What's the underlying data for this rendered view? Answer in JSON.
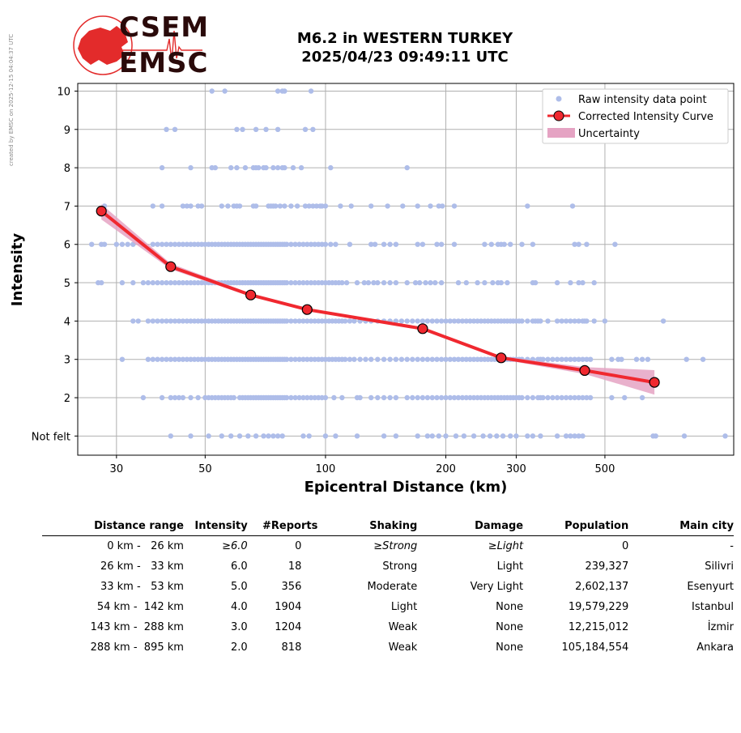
{
  "watermark": "created by EMSC on 2025-12-15 04:04:37 UTC",
  "logo": {
    "line1": "CSEM",
    "line2": "EMSC",
    "color": "#e32b2b"
  },
  "header": {
    "title": "M6.2 in WESTERN TURKEY",
    "subtitle": "2025/04/23 09:49:11 UTC"
  },
  "chart_data": {
    "type": "scatter",
    "xlabel": "Epicentral Distance (km)",
    "ylabel": "Intensity",
    "x_scale": "log",
    "xlim": [
      24,
      1050
    ],
    "ylim": [
      0.5,
      10.2
    ],
    "grid": true,
    "legend_position": "top-right",
    "x_ticks": [
      30,
      50,
      100,
      200,
      300,
      500
    ],
    "y_ticks": [
      {
        "value": 1,
        "label": "Not felt"
      },
      {
        "value": 2,
        "label": "2"
      },
      {
        "value": 3,
        "label": "3"
      },
      {
        "value": 4,
        "label": "4"
      },
      {
        "value": 5,
        "label": "5"
      },
      {
        "value": 6,
        "label": "6"
      },
      {
        "value": 7,
        "label": "7"
      },
      {
        "value": 8,
        "label": "8"
      },
      {
        "value": 9,
        "label": "9"
      },
      {
        "value": 10,
        "label": "10"
      }
    ],
    "colors": {
      "raw": "#aebde9",
      "curve": "#f0282f",
      "uncertainty": "#e5a3c3",
      "grid": "#b0b0b0"
    },
    "legend": [
      {
        "name": "Raw intensity data point",
        "kind": "dot"
      },
      {
        "name": "Corrected Intensity Curve",
        "kind": "line"
      },
      {
        "name": "Uncertainty",
        "kind": "band"
      }
    ],
    "raw_data": [
      {
        "y": 10,
        "x": [
          52,
          56,
          76,
          78,
          79,
          92
        ]
      },
      {
        "y": 9,
        "x": [
          40,
          42,
          60,
          62,
          67,
          71,
          76,
          89,
          93
        ]
      },
      {
        "y": 8,
        "x": [
          39,
          46,
          52,
          53,
          58,
          60,
          63,
          66,
          67,
          68,
          70,
          71,
          74,
          76,
          78,
          79,
          83,
          87,
          103,
          160
        ]
      },
      {
        "y": 7,
        "x": [
          28,
          37,
          39,
          44,
          45,
          46,
          48,
          49,
          55,
          57,
          59,
          60,
          61,
          66,
          67,
          72,
          73,
          74,
          75,
          77,
          79,
          82,
          85,
          89,
          91,
          93,
          95,
          97,
          98,
          100,
          109,
          116,
          130,
          143,
          156,
          170,
          183,
          192,
          196,
          210,
          320,
          415
        ]
      },
      {
        "y": 6,
        "x": [
          26,
          27.5,
          28,
          30,
          31,
          32,
          33,
          35,
          37,
          38,
          39,
          40,
          41,
          42,
          43,
          44,
          45,
          46,
          47,
          48,
          49,
          50,
          51,
          52,
          53,
          54,
          55,
          56,
          57,
          58,
          59,
          60,
          61,
          62,
          63,
          64,
          65,
          66,
          67,
          68,
          69,
          70,
          71,
          72,
          73,
          74,
          75,
          76,
          77,
          78,
          79,
          80,
          82,
          84,
          86,
          88,
          90,
          92,
          94,
          96,
          98,
          100,
          103,
          106,
          115,
          130,
          133,
          140,
          145,
          150,
          170,
          175,
          190,
          195,
          210,
          250,
          260,
          270,
          275,
          280,
          290,
          310,
          330,
          420,
          430,
          450,
          530
        ]
      },
      {
        "y": 5,
        "x": [
          27,
          27.5,
          31,
          33,
          35,
          36,
          37,
          38,
          39,
          40,
          41,
          42,
          43,
          44,
          45,
          46,
          47,
          48,
          49,
          50,
          51,
          52,
          53,
          54,
          55,
          56,
          57,
          58,
          59,
          60,
          61,
          62,
          63,
          64,
          65,
          66,
          67,
          68,
          69,
          70,
          71,
          72,
          73,
          74,
          75,
          76,
          77,
          78,
          79,
          80,
          82,
          84,
          86,
          88,
          90,
          92,
          94,
          96,
          98,
          100,
          102,
          104,
          106,
          108,
          110,
          113,
          120,
          125,
          128,
          132,
          135,
          140,
          145,
          150,
          160,
          168,
          172,
          178,
          183,
          188,
          195,
          215,
          225,
          240,
          250,
          262,
          270,
          275,
          285,
          330,
          335,
          380,
          410,
          430,
          440,
          470
        ]
      },
      {
        "y": 4,
        "x": [
          33,
          34,
          36,
          37,
          38,
          39,
          40,
          41,
          42,
          43,
          44,
          45,
          46,
          47,
          48,
          49,
          50,
          51,
          52,
          53,
          54,
          55,
          56,
          57,
          58,
          59,
          60,
          61,
          62,
          63,
          64,
          65,
          66,
          67,
          68,
          69,
          70,
          71,
          72,
          73,
          74,
          75,
          76,
          77,
          78,
          79,
          80,
          82,
          84,
          86,
          88,
          90,
          92,
          94,
          96,
          98,
          100,
          102,
          104,
          106,
          108,
          110,
          112,
          115,
          118,
          122,
          126,
          130,
          135,
          140,
          145,
          150,
          155,
          160,
          165,
          170,
          175,
          180,
          185,
          190,
          195,
          200,
          205,
          210,
          215,
          220,
          225,
          230,
          235,
          240,
          245,
          250,
          255,
          260,
          265,
          270,
          275,
          280,
          285,
          290,
          295,
          300,
          305,
          310,
          320,
          330,
          335,
          340,
          345,
          360,
          380,
          390,
          400,
          410,
          420,
          430,
          440,
          445,
          450,
          470,
          500,
          700
        ]
      },
      {
        "y": 3,
        "x": [
          31,
          36,
          37,
          38,
          39,
          40,
          41,
          42,
          43,
          44,
          45,
          46,
          47,
          48,
          49,
          50,
          51,
          52,
          53,
          54,
          55,
          56,
          57,
          58,
          59,
          60,
          61,
          62,
          63,
          64,
          65,
          66,
          67,
          68,
          69,
          70,
          71,
          72,
          73,
          74,
          75,
          76,
          77,
          78,
          79,
          80,
          82,
          84,
          86,
          88,
          90,
          92,
          94,
          96,
          98,
          100,
          102,
          104,
          106,
          108,
          110,
          112,
          115,
          118,
          122,
          126,
          130,
          135,
          140,
          145,
          150,
          155,
          160,
          165,
          170,
          175,
          180,
          185,
          190,
          195,
          200,
          205,
          210,
          215,
          220,
          225,
          230,
          235,
          240,
          245,
          250,
          255,
          260,
          265,
          270,
          275,
          280,
          285,
          290,
          295,
          300,
          305,
          310,
          320,
          330,
          340,
          345,
          350,
          360,
          370,
          380,
          390,
          400,
          410,
          420,
          430,
          440,
          450,
          460,
          520,
          540,
          550,
          600,
          620,
          640,
          800,
          880
        ]
      },
      {
        "y": 2,
        "x": [
          35,
          39,
          41,
          42,
          43,
          44,
          46,
          48,
          50,
          51,
          52,
          53,
          54,
          55,
          56,
          57,
          58,
          59,
          61,
          62,
          63,
          64,
          65,
          66,
          67,
          68,
          69,
          70,
          71,
          72,
          73,
          74,
          75,
          76,
          77,
          78,
          79,
          80,
          82,
          84,
          86,
          88,
          90,
          92,
          94,
          96,
          98,
          100,
          105,
          110,
          120,
          122,
          130,
          135,
          140,
          145,
          150,
          160,
          165,
          170,
          175,
          180,
          185,
          190,
          195,
          200,
          205,
          210,
          215,
          220,
          225,
          230,
          235,
          240,
          245,
          250,
          255,
          260,
          265,
          270,
          275,
          280,
          285,
          290,
          295,
          300,
          305,
          310,
          320,
          330,
          340,
          345,
          350,
          360,
          370,
          380,
          390,
          400,
          410,
          420,
          430,
          440,
          450,
          460,
          520,
          560,
          620
        ]
      },
      {
        "y": 1,
        "x": [
          41,
          46,
          51,
          55,
          58,
          61,
          64,
          67,
          70,
          72,
          74,
          76,
          78,
          88,
          91,
          100,
          106,
          120,
          140,
          150,
          170,
          180,
          185,
          192,
          200,
          212,
          222,
          235,
          248,
          258,
          268,
          278,
          290,
          300,
          320,
          330,
          345,
          380,
          400,
          410,
          420,
          430,
          440,
          660,
          670,
          790,
          1000
        ]
      }
    ],
    "curve": [
      {
        "x": 27.5,
        "y": 6.87,
        "lo": 6.65,
        "hi": 7.05
      },
      {
        "x": 41,
        "y": 5.42,
        "lo": 5.35,
        "hi": 5.5
      },
      {
        "x": 65,
        "y": 4.68,
        "lo": 4.64,
        "hi": 4.72
      },
      {
        "x": 90,
        "y": 4.3,
        "lo": 4.27,
        "hi": 4.33
      },
      {
        "x": 175,
        "y": 3.8,
        "lo": 3.76,
        "hi": 3.84
      },
      {
        "x": 275,
        "y": 3.04,
        "lo": 3.0,
        "hi": 3.08
      },
      {
        "x": 445,
        "y": 2.71,
        "lo": 2.62,
        "hi": 2.8
      },
      {
        "x": 665,
        "y": 2.4,
        "lo": 2.08,
        "hi": 2.72
      }
    ]
  },
  "table": {
    "headers": [
      "Distance range",
      "Intensity",
      "#Reports",
      "Shaking",
      "Damage",
      "Population",
      "Main city"
    ],
    "rows": [
      {
        "distance": "0 km -   26 km",
        "intensity": "≥6.0",
        "reports": "0",
        "shaking": "≥Strong",
        "damage": "≥Light",
        "population": "0",
        "city": "-"
      },
      {
        "distance": "26 km -   33 km",
        "intensity": "6.0",
        "reports": "18",
        "shaking": "Strong",
        "damage": "Light",
        "population": "239,327",
        "city": "Silivri"
      },
      {
        "distance": "33 km -   53 km",
        "intensity": "5.0",
        "reports": "356",
        "shaking": "Moderate",
        "damage": "Very Light",
        "population": "2,602,137",
        "city": "Esenyurt"
      },
      {
        "distance": "54 km -  142 km",
        "intensity": "4.0",
        "reports": "1904",
        "shaking": "Light",
        "damage": "None",
        "population": "19,579,229",
        "city": "Istanbul"
      },
      {
        "distance": "143 km -  288 km",
        "intensity": "3.0",
        "reports": "1204",
        "shaking": "Weak",
        "damage": "None",
        "population": "12,215,012",
        "city": "İzmir"
      },
      {
        "distance": "288 km -  895 km",
        "intensity": "2.0",
        "reports": "818",
        "shaking": "Weak",
        "damage": "None",
        "population": "105,184,554",
        "city": "Ankara"
      }
    ]
  }
}
